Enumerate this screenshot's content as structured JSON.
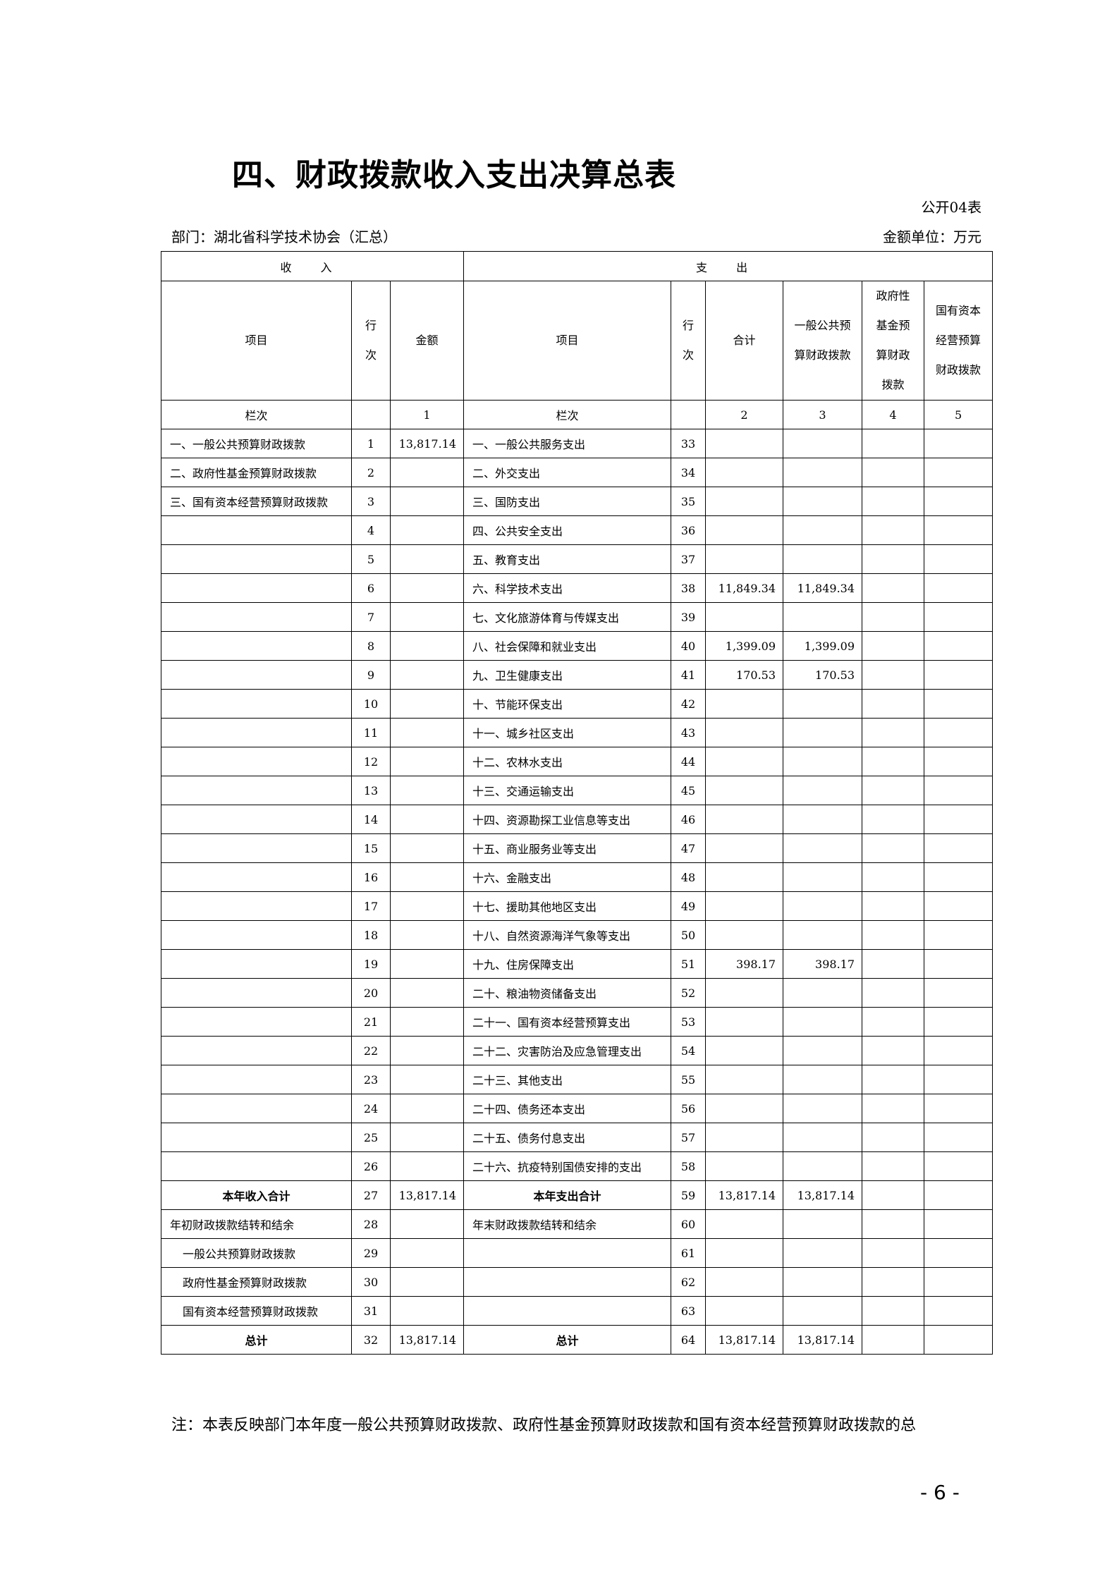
{
  "title": "四、财政拨款收入支出决算总表",
  "form_no": "公开04表",
  "department": "部门：湖北省科学技术协会（汇总）",
  "unit": "金额单位：万元",
  "header": {
    "income": "收 入",
    "expense": "支 出",
    "item": "项目",
    "line_no": "行次",
    "amount": "金额",
    "total": "合计",
    "general": "一般公共预算财政拨款",
    "fund": "政府性基金预算财政拨款",
    "capital": "国有资本经营预算财政拨款",
    "col_label": "栏次",
    "col1": "1",
    "col2": "2",
    "col3": "3",
    "col4": "4",
    "col5": "5"
  },
  "rows": [
    {
      "in_item": "一、一般公共预算财政拨款",
      "in_line": "1",
      "in_amount": "13,817.14",
      "ex_item": "一、一般公共服务支出",
      "ex_line": "33",
      "total": "",
      "general": "",
      "fund": "",
      "capital": ""
    },
    {
      "in_item": "二、政府性基金预算财政拨款",
      "in_line": "2",
      "in_amount": "",
      "ex_item": "二、外交支出",
      "ex_line": "34",
      "total": "",
      "general": "",
      "fund": "",
      "capital": ""
    },
    {
      "in_item": "三、国有资本经营预算财政拨款",
      "in_line": "3",
      "in_amount": "",
      "ex_item": "三、国防支出",
      "ex_line": "35",
      "total": "",
      "general": "",
      "fund": "",
      "capital": ""
    },
    {
      "in_item": "",
      "in_line": "4",
      "in_amount": "",
      "ex_item": "四、公共安全支出",
      "ex_line": "36",
      "total": "",
      "general": "",
      "fund": "",
      "capital": ""
    },
    {
      "in_item": "",
      "in_line": "5",
      "in_amount": "",
      "ex_item": "五、教育支出",
      "ex_line": "37",
      "total": "",
      "general": "",
      "fund": "",
      "capital": ""
    },
    {
      "in_item": "",
      "in_line": "6",
      "in_amount": "",
      "ex_item": "六、科学技术支出",
      "ex_line": "38",
      "total": "11,849.34",
      "general": "11,849.34",
      "fund": "",
      "capital": ""
    },
    {
      "in_item": "",
      "in_line": "7",
      "in_amount": "",
      "ex_item": "七、文化旅游体育与传媒支出",
      "ex_line": "39",
      "total": "",
      "general": "",
      "fund": "",
      "capital": ""
    },
    {
      "in_item": "",
      "in_line": "8",
      "in_amount": "",
      "ex_item": "八、社会保障和就业支出",
      "ex_line": "40",
      "total": "1,399.09",
      "general": "1,399.09",
      "fund": "",
      "capital": ""
    },
    {
      "in_item": "",
      "in_line": "9",
      "in_amount": "",
      "ex_item": "九、卫生健康支出",
      "ex_line": "41",
      "total": "170.53",
      "general": "170.53",
      "fund": "",
      "capital": ""
    },
    {
      "in_item": "",
      "in_line": "10",
      "in_amount": "",
      "ex_item": "十、节能环保支出",
      "ex_line": "42",
      "total": "",
      "general": "",
      "fund": "",
      "capital": ""
    },
    {
      "in_item": "",
      "in_line": "11",
      "in_amount": "",
      "ex_item": "十一、城乡社区支出",
      "ex_line": "43",
      "total": "",
      "general": "",
      "fund": "",
      "capital": ""
    },
    {
      "in_item": "",
      "in_line": "12",
      "in_amount": "",
      "ex_item": "十二、农林水支出",
      "ex_line": "44",
      "total": "",
      "general": "",
      "fund": "",
      "capital": ""
    },
    {
      "in_item": "",
      "in_line": "13",
      "in_amount": "",
      "ex_item": "十三、交通运输支出",
      "ex_line": "45",
      "total": "",
      "general": "",
      "fund": "",
      "capital": ""
    },
    {
      "in_item": "",
      "in_line": "14",
      "in_amount": "",
      "ex_item": "十四、资源勘探工业信息等支出",
      "ex_line": "46",
      "total": "",
      "general": "",
      "fund": "",
      "capital": ""
    },
    {
      "in_item": "",
      "in_line": "15",
      "in_amount": "",
      "ex_item": "十五、商业服务业等支出",
      "ex_line": "47",
      "total": "",
      "general": "",
      "fund": "",
      "capital": ""
    },
    {
      "in_item": "",
      "in_line": "16",
      "in_amount": "",
      "ex_item": "十六、金融支出",
      "ex_line": "48",
      "total": "",
      "general": "",
      "fund": "",
      "capital": ""
    },
    {
      "in_item": "",
      "in_line": "17",
      "in_amount": "",
      "ex_item": "十七、援助其他地区支出",
      "ex_line": "49",
      "total": "",
      "general": "",
      "fund": "",
      "capital": ""
    },
    {
      "in_item": "",
      "in_line": "18",
      "in_amount": "",
      "ex_item": "十八、自然资源海洋气象等支出",
      "ex_line": "50",
      "total": "",
      "general": "",
      "fund": "",
      "capital": ""
    },
    {
      "in_item": "",
      "in_line": "19",
      "in_amount": "",
      "ex_item": "十九、住房保障支出",
      "ex_line": "51",
      "total": "398.17",
      "general": "398.17",
      "fund": "",
      "capital": ""
    },
    {
      "in_item": "",
      "in_line": "20",
      "in_amount": "",
      "ex_item": "二十、粮油物资储备支出",
      "ex_line": "52",
      "total": "",
      "general": "",
      "fund": "",
      "capital": ""
    },
    {
      "in_item": "",
      "in_line": "21",
      "in_amount": "",
      "ex_item": "二十一、国有资本经营预算支出",
      "ex_line": "53",
      "total": "",
      "general": "",
      "fund": "",
      "capital": ""
    },
    {
      "in_item": "",
      "in_line": "22",
      "in_amount": "",
      "ex_item": "二十二、灾害防治及应急管理支出",
      "ex_line": "54",
      "total": "",
      "general": "",
      "fund": "",
      "capital": ""
    },
    {
      "in_item": "",
      "in_line": "23",
      "in_amount": "",
      "ex_item": "二十三、其他支出",
      "ex_line": "55",
      "total": "",
      "general": "",
      "fund": "",
      "capital": ""
    },
    {
      "in_item": "",
      "in_line": "24",
      "in_amount": "",
      "ex_item": "二十四、债务还本支出",
      "ex_line": "56",
      "total": "",
      "general": "",
      "fund": "",
      "capital": ""
    },
    {
      "in_item": "",
      "in_line": "25",
      "in_amount": "",
      "ex_item": "二十五、债务付息支出",
      "ex_line": "57",
      "total": "",
      "general": "",
      "fund": "",
      "capital": ""
    },
    {
      "in_item": "",
      "in_line": "26",
      "in_amount": "",
      "ex_item": "二十六、抗疫特别国债安排的支出",
      "ex_line": "58",
      "total": "",
      "general": "",
      "fund": "",
      "capital": ""
    },
    {
      "in_item": "本年收入合计",
      "in_line": "27",
      "in_amount": "13,817.14",
      "ex_item": "本年支出合计",
      "ex_line": "59",
      "total": "13,817.14",
      "general": "13,817.14",
      "fund": "",
      "capital": "",
      "style": "bold"
    },
    {
      "in_item": "年初财政拨款结转和结余",
      "in_line": "28",
      "in_amount": "",
      "ex_item": "年末财政拨款结转和结余",
      "ex_line": "60",
      "total": "",
      "general": "",
      "fund": "",
      "capital": ""
    },
    {
      "in_item": "一般公共预算财政拨款",
      "in_line": "29",
      "in_amount": "",
      "ex_item": "",
      "ex_line": "61",
      "total": "",
      "general": "",
      "fund": "",
      "capital": "",
      "style": "indent"
    },
    {
      "in_item": "政府性基金预算财政拨款",
      "in_line": "30",
      "in_amount": "",
      "ex_item": "",
      "ex_line": "62",
      "total": "",
      "general": "",
      "fund": "",
      "capital": "",
      "style": "indent"
    },
    {
      "in_item": "国有资本经营预算财政拨款",
      "in_line": "31",
      "in_amount": "",
      "ex_item": "",
      "ex_line": "63",
      "total": "",
      "general": "",
      "fund": "",
      "capital": "",
      "style": "indent"
    },
    {
      "in_item": "总计",
      "in_line": "32",
      "in_amount": "13,817.14",
      "ex_item": "总计",
      "ex_line": "64",
      "total": "13,817.14",
      "general": "13,817.14",
      "fund": "",
      "capital": "",
      "style": "bold"
    }
  ],
  "note": "注：本表反映部门本年度一般公共预算财政拨款、政府性基金预算财政拨款和国有资本经营预算财政拨款的总",
  "page_number": "- 6 -"
}
